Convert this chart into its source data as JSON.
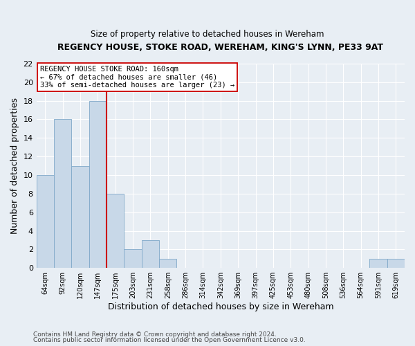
{
  "title": "REGENCY HOUSE, STOKE ROAD, WEREHAM, KING'S LYNN, PE33 9AT",
  "subtitle": "Size of property relative to detached houses in Wereham",
  "xlabel": "Distribution of detached houses by size in Wereham",
  "ylabel": "Number of detached properties",
  "bar_labels": [
    "64sqm",
    "92sqm",
    "120sqm",
    "147sqm",
    "175sqm",
    "203sqm",
    "231sqm",
    "258sqm",
    "286sqm",
    "314sqm",
    "342sqm",
    "369sqm",
    "397sqm",
    "425sqm",
    "453sqm",
    "480sqm",
    "508sqm",
    "536sqm",
    "564sqm",
    "591sqm",
    "619sqm"
  ],
  "bar_values": [
    10,
    16,
    11,
    18,
    8,
    2,
    3,
    1,
    0,
    0,
    0,
    0,
    0,
    0,
    0,
    0,
    0,
    0,
    0,
    1,
    1
  ],
  "bar_color": "#c8d8e8",
  "bar_edge_color": "#7fa8c8",
  "vline_x": 3.5,
  "vline_color": "#cc0000",
  "annotation_text": "REGENCY HOUSE STOKE ROAD: 160sqm\n← 67% of detached houses are smaller (46)\n33% of semi-detached houses are larger (23) →",
  "annotation_box_color": "#ffffff",
  "annotation_box_edge_color": "#cc0000",
  "ylim": [
    0,
    22
  ],
  "yticks": [
    0,
    2,
    4,
    6,
    8,
    10,
    12,
    14,
    16,
    18,
    20,
    22
  ],
  "background_color": "#e8eef4",
  "footer_line1": "Contains HM Land Registry data © Crown copyright and database right 2024.",
  "footer_line2": "Contains public sector information licensed under the Open Government Licence v3.0."
}
